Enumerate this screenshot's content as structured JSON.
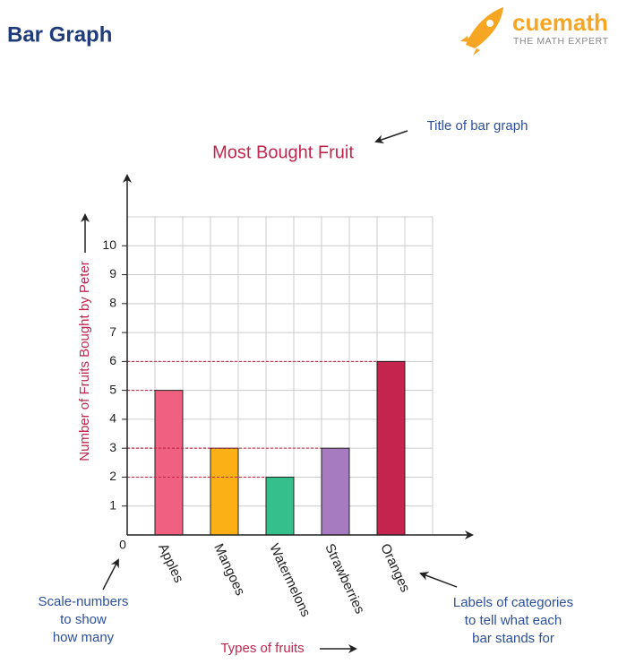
{
  "header": {
    "title": "Bar Graph",
    "brand": "cuemath",
    "tagline": "THE MATH EXPERT"
  },
  "chart_data": {
    "type": "bar",
    "title": "Most Bought Fruit",
    "x_label": "Types of fruits",
    "y_label": "Number of Fruits Bought by Peter",
    "categories": [
      "Apples",
      "Mangoes",
      "Watermelons",
      "Strawberries",
      "Oranges"
    ],
    "values": [
      5,
      3,
      2,
      3,
      6
    ],
    "colors": [
      "#f06080",
      "#fbb116",
      "#35bf8c",
      "#a77bbf",
      "#c4244e"
    ],
    "ylim": [
      0,
      11
    ],
    "yticks": [
      0,
      1,
      2,
      3,
      4,
      5,
      6,
      7,
      8,
      9,
      10
    ],
    "grid": true,
    "annotations": {
      "title_note": "Title of bar graph",
      "scale_note": [
        "Scale-numbers",
        "to show",
        "how many"
      ],
      "category_note": [
        "Labels of categories",
        "to tell what each",
        "bar stands for"
      ]
    }
  }
}
